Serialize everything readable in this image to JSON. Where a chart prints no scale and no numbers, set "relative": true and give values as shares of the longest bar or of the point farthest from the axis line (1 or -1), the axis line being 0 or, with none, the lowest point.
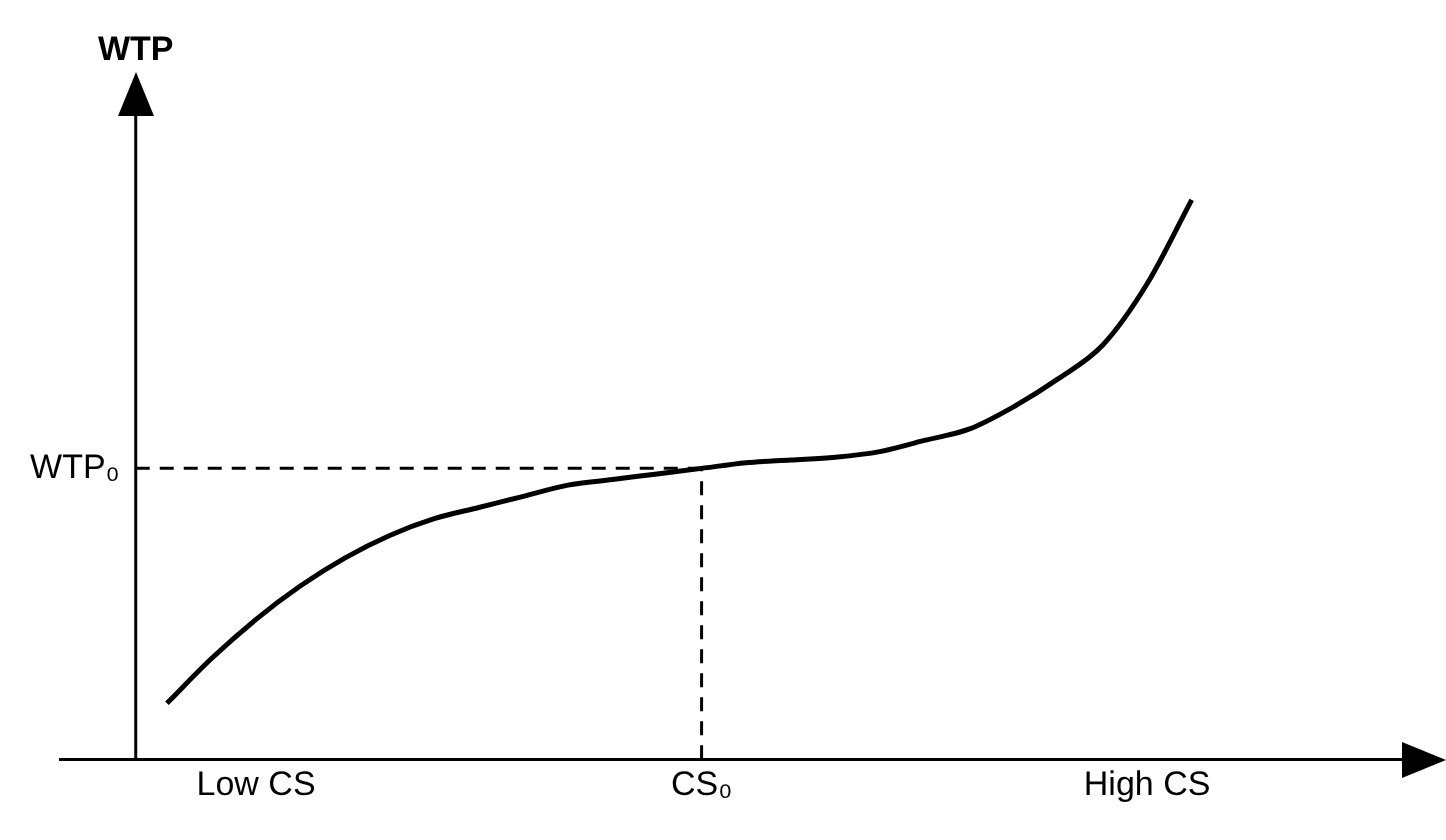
{
  "chart_data": {
    "type": "line",
    "relative": true,
    "ylabel": "WTP",
    "categories": [
      null,
      null,
      "Low CS",
      null,
      null,
      null,
      null,
      null,
      null,
      null,
      null,
      null,
      "CS₀",
      null,
      null,
      null,
      null,
      null,
      null,
      null,
      null,
      null,
      "High CS",
      null
    ],
    "series": [
      {
        "color": "#000000",
        "values": [
          0.1,
          0.18,
          0.25,
          0.31,
          0.36,
          0.4,
          0.43,
          0.45,
          0.47,
          0.49,
          0.5,
          0.51,
          0.52,
          0.53,
          0.535,
          0.54,
          0.55,
          0.57,
          0.59,
          0.63,
          0.68,
          0.74,
          0.85,
          1.0
        ]
      }
    ],
    "ref_lines": [
      {
        "axis": "x",
        "value": "CS₀",
        "line_style": "dashed"
      },
      {
        "axis": "y",
        "value": 0.52,
        "label": "WTP₀",
        "line_style": "dashed"
      }
    ],
    "grid": false,
    "legend": false,
    "marker": "none",
    "line_style": "solid"
  }
}
